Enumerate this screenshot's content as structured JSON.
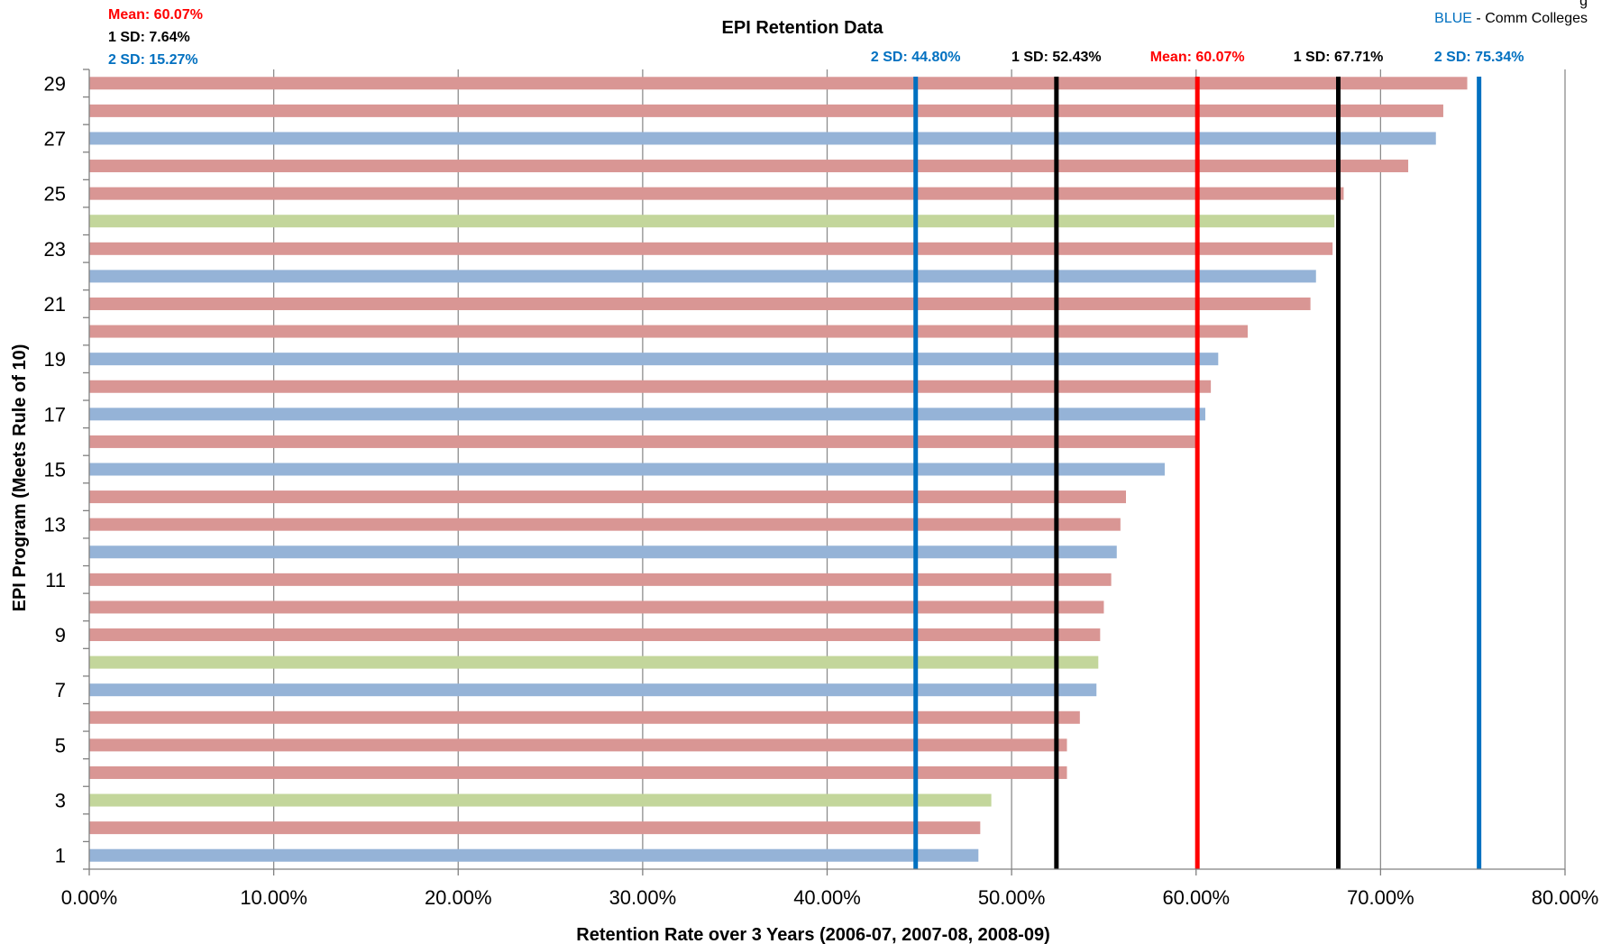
{
  "colors": {
    "red": "#FF0000",
    "black": "#000000",
    "blue": "#0070C0",
    "bar_pink": "#D99694",
    "bar_blue": "#95B3D7",
    "bar_green": "#C3D69B",
    "grid": "#8C8C8C"
  },
  "summary": {
    "mean": "Mean: 60.07%",
    "sd1": "1 SD: 7.64%",
    "sd2": "2 SD: 15.27%"
  },
  "legend": {
    "blue_key": "BLUE",
    "blue_text": " - Comm Colleges",
    "partial_text": "g"
  },
  "chart_data": {
    "type": "bar",
    "orientation": "horizontal",
    "title": "EPI Retention Data",
    "xlabel": "Retention Rate over 3 Years (2006-07, 2007-08, 2008-09)",
    "ylabel": "EPI Program (Meets Rule of 10)",
    "xlim": [
      0,
      80
    ],
    "x_ticks": [
      "0.00%",
      "10.00%",
      "20.00%",
      "30.00%",
      "40.00%",
      "50.00%",
      "60.00%",
      "70.00%",
      "80.00%"
    ],
    "y_ticks": [
      "1",
      "3",
      "5",
      "7",
      "9",
      "11",
      "13",
      "15",
      "17",
      "19",
      "21",
      "23",
      "25",
      "27",
      "29"
    ],
    "grid": "vertical major gridlines",
    "bars": [
      {
        "program": 1,
        "value": 48.2,
        "group": "blue"
      },
      {
        "program": 2,
        "value": 48.3,
        "group": "pink"
      },
      {
        "program": 3,
        "value": 48.9,
        "group": "green"
      },
      {
        "program": 4,
        "value": 53.0,
        "group": "pink"
      },
      {
        "program": 5,
        "value": 53.0,
        "group": "pink"
      },
      {
        "program": 6,
        "value": 53.7,
        "group": "pink"
      },
      {
        "program": 7,
        "value": 54.6,
        "group": "blue"
      },
      {
        "program": 8,
        "value": 54.7,
        "group": "green"
      },
      {
        "program": 9,
        "value": 54.8,
        "group": "pink"
      },
      {
        "program": 10,
        "value": 55.0,
        "group": "pink"
      },
      {
        "program": 11,
        "value": 55.4,
        "group": "pink"
      },
      {
        "program": 12,
        "value": 55.7,
        "group": "blue"
      },
      {
        "program": 13,
        "value": 55.9,
        "group": "pink"
      },
      {
        "program": 14,
        "value": 56.2,
        "group": "pink"
      },
      {
        "program": 15,
        "value": 58.3,
        "group": "blue"
      },
      {
        "program": 16,
        "value": 60.1,
        "group": "pink"
      },
      {
        "program": 17,
        "value": 60.5,
        "group": "blue"
      },
      {
        "program": 18,
        "value": 60.8,
        "group": "pink"
      },
      {
        "program": 19,
        "value": 61.2,
        "group": "blue"
      },
      {
        "program": 20,
        "value": 62.8,
        "group": "pink"
      },
      {
        "program": 21,
        "value": 66.2,
        "group": "pink"
      },
      {
        "program": 22,
        "value": 66.5,
        "group": "blue"
      },
      {
        "program": 23,
        "value": 67.4,
        "group": "pink"
      },
      {
        "program": 24,
        "value": 67.5,
        "group": "green"
      },
      {
        "program": 25,
        "value": 68.0,
        "group": "pink"
      },
      {
        "program": 26,
        "value": 71.5,
        "group": "pink"
      },
      {
        "program": 27,
        "value": 73.0,
        "group": "blue"
      },
      {
        "program": 28,
        "value": 73.4,
        "group": "pink"
      },
      {
        "program": 29,
        "value": 74.7,
        "group": "pink"
      }
    ],
    "reference_lines": [
      {
        "label": "2 SD: 44.80%",
        "value": 44.8,
        "color": "blue"
      },
      {
        "label": "1 SD: 52.43%",
        "value": 52.43,
        "color": "black"
      },
      {
        "label": "Mean: 60.07%",
        "value": 60.07,
        "color": "red"
      },
      {
        "label": "1 SD: 67.71%",
        "value": 67.71,
        "color": "black"
      },
      {
        "label": "2 SD: 75.34%",
        "value": 75.34,
        "color": "blue"
      }
    ]
  }
}
